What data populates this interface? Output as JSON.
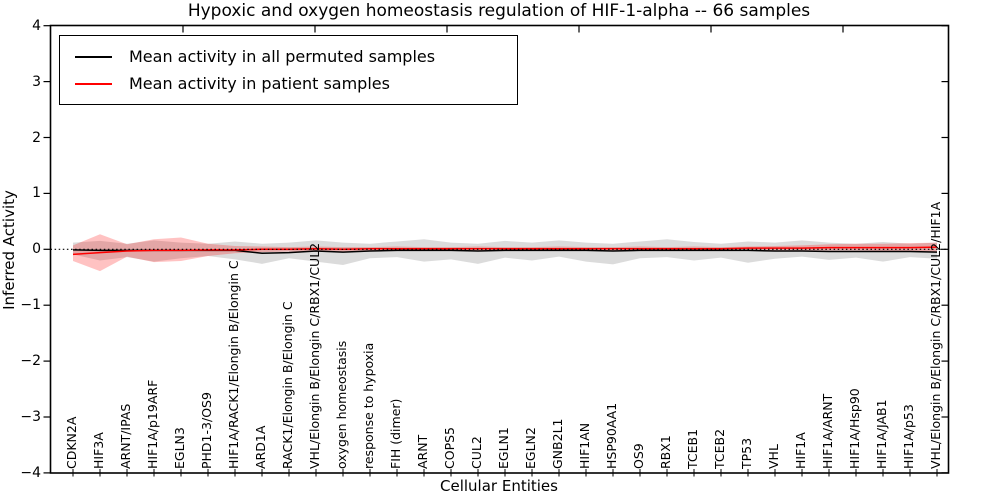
{
  "figure": {
    "title": "Hypoxic and oxygen homeostasis regulation of HIF-1-alpha -- 66 samples",
    "xlabel": "Cellular Entities",
    "ylabel": "Inferred Activity"
  },
  "legend": {
    "entries": [
      {
        "label": "Mean activity in all permuted samples",
        "color": "#000000"
      },
      {
        "label": "Mean activity in patient samples",
        "color": "#ff0000"
      }
    ]
  },
  "chart_data": {
    "type": "line",
    "title": "Hypoxic and oxygen homeostasis regulation of HIF-1-alpha -- 66 samples",
    "xlabel": "Cellular Entities",
    "ylabel": "Inferred Activity",
    "ylim": [
      -4,
      4
    ],
    "grid": false,
    "legend_position": "upper left",
    "ytick_values": [
      4,
      3,
      2,
      1,
      0,
      -1,
      -2,
      -3,
      -4
    ],
    "ytick_labels": [
      "4",
      "3",
      "2",
      "1",
      "0",
      "−1",
      "−2",
      "−3",
      "−4"
    ],
    "categories": [
      "CDKN2A",
      "HIF3A",
      "ARNT/IPAS",
      "HIF1A/p19ARF",
      "EGLN3",
      "PHD1-3/OS9",
      "HIF1A/RACK1/Elongin B/Elongin C",
      "ARD1A",
      "RACK1/Elongin B/Elongin C",
      "VHL/Elongin B/Elongin C/RBX1/CUL2",
      "oxygen homeostasis",
      "response to hypoxia",
      "FIH (dimer)",
      "ARNT",
      "COPS5",
      "CUL2",
      "EGLN1",
      "EGLN2",
      "GNB2L1",
      "HIF1AN",
      "HSP90AA1",
      "OS9",
      "RBX1",
      "TCEB1",
      "TCEB2",
      "TP53",
      "VHL",
      "HIF1A",
      "HIF1A/ARNT",
      "HIF1A/Hsp90",
      "HIF1A/JAB1",
      "HIF1A/p53",
      "VHL/Elongin B/Elongin C/RBX1/CUL2/HIF1A"
    ],
    "series": [
      {
        "name": "Mean activity in all permuted samples",
        "color": "#000000",
        "values": [
          -0.01,
          -0.02,
          -0.02,
          -0.02,
          -0.02,
          -0.02,
          -0.02,
          -0.07,
          -0.06,
          -0.03,
          -0.05,
          -0.03,
          -0.02,
          -0.02,
          -0.02,
          -0.03,
          -0.02,
          -0.02,
          -0.02,
          -0.02,
          -0.03,
          -0.02,
          -0.02,
          -0.02,
          -0.02,
          -0.02,
          -0.03,
          -0.03,
          -0.04,
          -0.04,
          -0.04,
          -0.04,
          -0.05
        ]
      },
      {
        "name": "Mean activity in patient samples",
        "color": "#ff0000",
        "values": [
          -0.09,
          -0.06,
          -0.03,
          -0.02,
          -0.02,
          -0.01,
          -0.01,
          0.0,
          0.0,
          0.01,
          0.0,
          0.01,
          0.01,
          0.01,
          0.01,
          0.01,
          0.01,
          0.01,
          0.01,
          0.01,
          0.01,
          0.01,
          0.01,
          0.01,
          0.01,
          0.02,
          0.02,
          0.02,
          0.03,
          0.03,
          0.03,
          0.03,
          0.04
        ]
      }
    ],
    "bands": [
      {
        "name": "permuted samples range",
        "color": "#000000",
        "opacity": 0.14,
        "high": [
          0.12,
          0.15,
          0.1,
          0.16,
          0.12,
          0.1,
          0.14,
          0.1,
          0.12,
          0.16,
          0.12,
          0.1,
          0.14,
          0.18,
          0.12,
          0.1,
          0.15,
          0.12,
          0.16,
          0.12,
          0.1,
          0.14,
          0.18,
          0.13,
          0.1,
          0.14,
          0.12,
          0.16,
          0.12,
          0.1,
          0.13,
          0.1,
          0.12
        ],
        "low": [
          -0.09,
          -0.2,
          -0.14,
          -0.22,
          -0.16,
          -0.12,
          -0.18,
          -0.26,
          -0.16,
          -0.22,
          -0.28,
          -0.16,
          -0.14,
          -0.22,
          -0.18,
          -0.26,
          -0.15,
          -0.2,
          -0.13,
          -0.22,
          -0.27,
          -0.16,
          -0.14,
          -0.2,
          -0.15,
          -0.24,
          -0.17,
          -0.13,
          -0.19,
          -0.15,
          -0.22,
          -0.14,
          -0.17
        ]
      },
      {
        "name": "patient samples range",
        "color": "#ff0000",
        "opacity": 0.24,
        "high": [
          0.07,
          0.27,
          0.09,
          0.18,
          0.21,
          0.1,
          0.06,
          0.05,
          0.04,
          0.05,
          0.04,
          0.04,
          0.05,
          0.04,
          0.04,
          0.05,
          0.04,
          0.04,
          0.05,
          0.04,
          0.04,
          0.05,
          0.04,
          0.05,
          0.04,
          0.05,
          0.06,
          0.07,
          0.09,
          0.1,
          0.1,
          0.11,
          0.12
        ],
        "low": [
          -0.21,
          -0.39,
          -0.13,
          -0.23,
          -0.21,
          -0.12,
          -0.07,
          -0.05,
          -0.04,
          -0.04,
          -0.04,
          -0.03,
          -0.03,
          -0.03,
          -0.03,
          -0.03,
          -0.03,
          -0.03,
          -0.03,
          -0.03,
          -0.03,
          -0.03,
          -0.03,
          -0.03,
          -0.03,
          -0.03,
          -0.02,
          -0.02,
          -0.02,
          -0.02,
          -0.03,
          -0.03,
          -0.05
        ]
      }
    ],
    "zero_line": {
      "y": 0,
      "style": "dashed",
      "color": "#000000"
    }
  }
}
